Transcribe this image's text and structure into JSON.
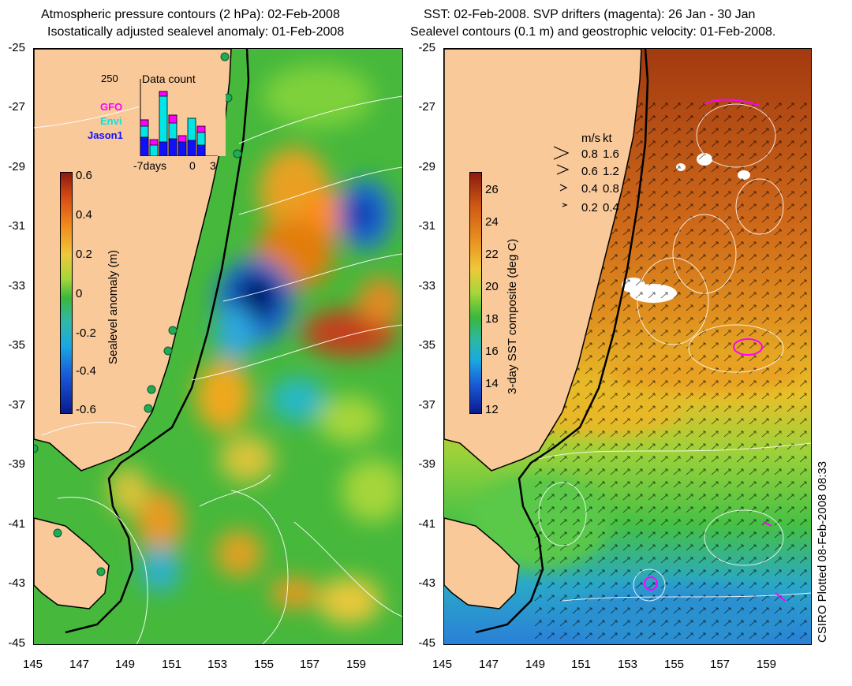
{
  "left_panel": {
    "title_line1": "Atmospheric pressure contours (2 hPa): 02-Feb-2008",
    "title_line2": "Isostatically adjusted sealevel anomaly: 01-Feb-2008",
    "colorbar_label": "Sealevel anomaly (m)",
    "colorbar_ticks": [
      "0.6",
      "0.4",
      "0.2",
      "0",
      "-0.2",
      "-0.4",
      "-0.6"
    ],
    "inset": {
      "title": "Data count",
      "ymax_label": "250",
      "xtick_labels": [
        "-7days",
        "0",
        "3"
      ],
      "legend": [
        {
          "name": "GFO",
          "color": "#ff00ff"
        },
        {
          "name": "Envi",
          "color": "#00e5e5"
        },
        {
          "name": "Jason1",
          "color": "#1010ff"
        }
      ]
    }
  },
  "right_panel": {
    "title_line1": "SST: 02-Feb-2008. SVP drifters (magenta): 26 Jan - 30 Jan",
    "title_line2": "Sealevel contours (0.1 m) and geostrophic velocity: 01-Feb-2008.",
    "colorbar_label": "3-day SST composite (deg C)",
    "colorbar_ticks": [
      "26",
      "24",
      "22",
      "20",
      "18",
      "16",
      "14",
      "12"
    ],
    "velocity_legend": {
      "header_ms": "m/s",
      "header_kt": "kt",
      "rows": [
        {
          "ms": "0.8",
          "kt": "1.6"
        },
        {
          "ms": "0.6",
          "kt": "1.2"
        },
        {
          "ms": "0.4",
          "kt": "0.8"
        },
        {
          "ms": "0.2",
          "kt": "0.4"
        }
      ]
    }
  },
  "axes": {
    "y_ticks": [
      "-25",
      "-27",
      "-29",
      "-31",
      "-33",
      "-35",
      "-37",
      "-39",
      "-41",
      "-43",
      "-45"
    ],
    "x_ticks": [
      "145",
      "147",
      "149",
      "151",
      "153",
      "155",
      "157",
      "159"
    ]
  },
  "credit": "CSIRO Plotted 08-Feb-2008 08:33",
  "colors": {
    "land": "#f9c99a",
    "coast": "#000000",
    "drifter": "#ff00ff",
    "tide_gauge": "#22aa55"
  }
}
